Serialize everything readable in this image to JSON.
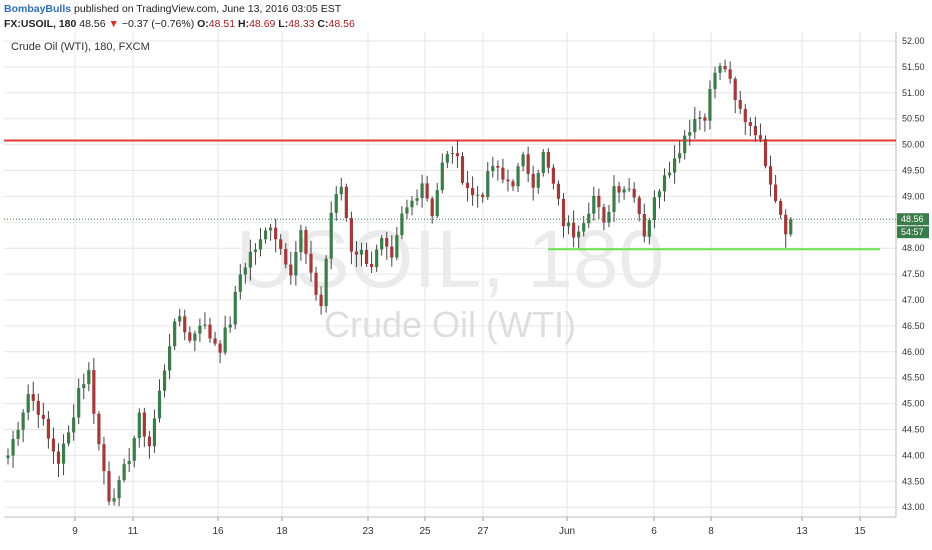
{
  "header": {
    "author": "BombayBulls",
    "published_text": " published on TradingView.com, June 13, 2016 03:05 EST",
    "symbol": "FX:USOIL, 180",
    "last": "48.56",
    "change": "−0.37 (−0.76%)",
    "o_label": "O:",
    "o_value": "48.51",
    "h_label": "H:",
    "h_value": "48.69",
    "l_label": "L:",
    "l_value": "48.33",
    "c_label": "C:",
    "c_value": "48.56"
  },
  "chart_data": {
    "type": "candlestick",
    "title": "Crude Oil (WTI), 180, FXCM",
    "watermark": {
      "symbol": "USOIL, 180",
      "name": "Crude Oil (WTI)"
    },
    "ylim": [
      42.8,
      52.1
    ],
    "y_ticks": [
      "43.00",
      "43.50",
      "44.00",
      "44.50",
      "45.00",
      "45.50",
      "46.00",
      "46.50",
      "47.00",
      "47.50",
      "48.00",
      "48.50",
      "49.00",
      "49.50",
      "50.00",
      "50.50",
      "51.00",
      "51.50",
      "52.00"
    ],
    "x_ticks": [
      "9",
      "11",
      "16",
      "18",
      "23",
      "25",
      "27",
      "Jun",
      "6",
      "8",
      "13",
      "15"
    ],
    "last_price_label": "48.56",
    "countdown_label": "54:57",
    "horizontal_lines": [
      {
        "name": "resistance",
        "value": 50.08,
        "color": "#e53935",
        "from": "start",
        "to": "end"
      },
      {
        "name": "support",
        "value": 47.98,
        "color": "#66e34b",
        "from": "May 31",
        "to": "Jun 15"
      }
    ],
    "colors": {
      "up": "#3b7d4a",
      "down": "#a33a3a",
      "wick": "#444444",
      "grid": "#e6e6e6"
    },
    "anchors": [
      [
        0,
        44.0
      ],
      [
        2,
        44.6
      ],
      [
        4,
        45.2
      ],
      [
        6,
        44.9
      ],
      [
        8,
        44.3
      ],
      [
        10,
        43.9
      ],
      [
        12,
        44.4
      ],
      [
        14,
        45.3
      ],
      [
        16,
        45.6
      ],
      [
        18,
        44.2
      ],
      [
        20,
        43.2
      ],
      [
        22,
        43.4
      ],
      [
        24,
        44.0
      ],
      [
        26,
        44.7
      ],
      [
        28,
        44.2
      ],
      [
        30,
        45.2
      ],
      [
        32,
        46.2
      ],
      [
        34,
        46.7
      ],
      [
        36,
        46.2
      ],
      [
        38,
        46.6
      ],
      [
        40,
        46.3
      ],
      [
        42,
        46.1
      ],
      [
        44,
        46.6
      ],
      [
        46,
        47.5
      ],
      [
        48,
        47.9
      ],
      [
        50,
        48.1
      ],
      [
        52,
        48.5
      ],
      [
        54,
        48.0
      ],
      [
        56,
        47.6
      ],
      [
        58,
        48.3
      ],
      [
        60,
        47.4
      ],
      [
        62,
        46.9
      ],
      [
        64,
        48.7
      ],
      [
        66,
        49.2
      ],
      [
        68,
        48.0
      ],
      [
        70,
        47.9
      ],
      [
        72,
        47.7
      ],
      [
        74,
        48.1
      ],
      [
        76,
        47.7
      ],
      [
        78,
        48.6
      ],
      [
        80,
        48.9
      ],
      [
        82,
        49.3
      ],
      [
        84,
        48.7
      ],
      [
        86,
        49.6
      ],
      [
        88,
        49.9
      ],
      [
        90,
        49.4
      ],
      [
        92,
        49.0
      ],
      [
        94,
        49.1
      ],
      [
        96,
        49.6
      ],
      [
        98,
        49.3
      ],
      [
        100,
        49.3
      ],
      [
        102,
        49.7
      ],
      [
        104,
        49.3
      ],
      [
        106,
        49.8
      ],
      [
        108,
        49.2
      ],
      [
        110,
        48.5
      ],
      [
        112,
        48.3
      ],
      [
        114,
        48.6
      ],
      [
        116,
        49.0
      ],
      [
        118,
        48.4
      ],
      [
        120,
        49.2
      ],
      [
        122,
        49.2
      ],
      [
        124,
        49.1
      ],
      [
        126,
        48.3
      ],
      [
        128,
        48.9
      ],
      [
        130,
        49.5
      ],
      [
        132,
        49.7
      ],
      [
        134,
        50.2
      ],
      [
        136,
        50.5
      ],
      [
        138,
        50.6
      ],
      [
        140,
        51.4
      ],
      [
        142,
        51.5
      ],
      [
        144,
        50.8
      ],
      [
        146,
        50.5
      ],
      [
        148,
        50.3
      ],
      [
        150,
        49.7
      ],
      [
        152,
        49.0
      ],
      [
        154,
        48.4
      ],
      [
        155,
        48.56
      ]
    ]
  }
}
